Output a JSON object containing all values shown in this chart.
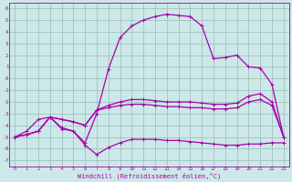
{
  "xlabel": "Windchill (Refroidissement éolien,°C)",
  "bg_color": "#cce8e8",
  "line_color": "#aa00aa",
  "grid_color": "#99bbbb",
  "xlim": [
    -0.5,
    23.5
  ],
  "ylim": [
    -7.5,
    6.5
  ],
  "xticks": [
    0,
    1,
    2,
    3,
    4,
    5,
    6,
    7,
    8,
    9,
    10,
    11,
    12,
    13,
    14,
    15,
    16,
    17,
    18,
    19,
    20,
    21,
    22,
    23
  ],
  "yticks": [
    -7,
    -6,
    -5,
    -4,
    -3,
    -2,
    -1,
    0,
    1,
    2,
    3,
    4,
    5,
    6
  ],
  "line1_x": [
    0,
    1,
    2,
    3,
    4,
    5,
    6,
    7,
    8,
    9,
    10,
    11,
    12,
    13,
    14,
    15,
    16,
    17,
    18,
    19,
    20,
    21,
    22,
    23
  ],
  "line1_y": [
    -5,
    -4.8,
    -4.5,
    -3.3,
    -4.2,
    -4.5,
    -5.7,
    -6.5,
    -5.9,
    -5.5,
    -5.2,
    -5.2,
    -5.2,
    -5.3,
    -5.3,
    -5.4,
    -5.5,
    -5.6,
    -5.7,
    -5.7,
    -5.6,
    -5.6,
    -5.5,
    -5.5
  ],
  "line2_x": [
    0,
    1,
    2,
    3,
    4,
    5,
    6,
    7,
    8,
    9,
    10,
    11,
    12,
    13,
    14,
    15,
    16,
    17,
    18,
    19,
    20,
    21,
    22,
    23
  ],
  "line2_y": [
    -5,
    -4.8,
    -4.5,
    -3.3,
    -3.5,
    -3.7,
    -4.0,
    -2.7,
    -2.5,
    -2.3,
    -2.2,
    -2.2,
    -2.3,
    -2.4,
    -2.4,
    -2.5,
    -2.5,
    -2.6,
    -2.6,
    -2.5,
    -2.0,
    -1.8,
    -2.3,
    -5.0
  ],
  "line3_x": [
    0,
    1,
    2,
    3,
    4,
    5,
    6,
    7,
    8,
    9,
    10,
    11,
    12,
    13,
    14,
    15,
    16,
    17,
    18,
    19,
    20,
    21,
    22,
    23
  ],
  "line3_y": [
    -5,
    -4.8,
    -4.5,
    -3.3,
    -3.5,
    -3.7,
    -4.0,
    -2.7,
    -2.3,
    -2.0,
    -1.8,
    -1.8,
    -1.9,
    -2.0,
    -2.0,
    -2.0,
    -2.1,
    -2.2,
    -2.2,
    -2.1,
    -1.5,
    -1.3,
    -2.0,
    -5.0
  ],
  "line4_x": [
    0,
    1,
    2,
    3,
    4,
    5,
    6,
    7,
    8,
    9,
    10,
    11,
    12,
    13,
    14,
    15,
    16,
    17,
    18,
    19,
    20,
    21,
    22,
    23
  ],
  "line4_y": [
    -5,
    -4.5,
    -3.5,
    -3.3,
    -4.3,
    -4.5,
    -5.5,
    -3.0,
    0.8,
    3.5,
    4.5,
    5.0,
    5.3,
    5.5,
    5.4,
    5.3,
    4.5,
    1.7,
    1.8,
    2.0,
    1.0,
    0.9,
    -0.5,
    -5.0
  ]
}
